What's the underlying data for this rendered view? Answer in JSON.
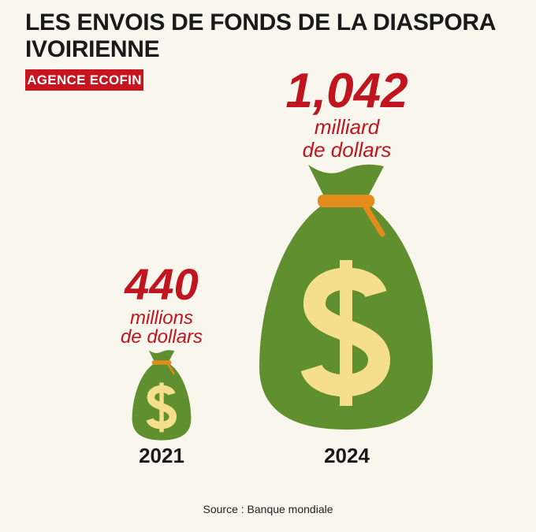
{
  "header": {
    "title": "LES ENVOIS DE FONDS DE LA DIASPORA IVOIRIENNE",
    "brand": "agence ecofin"
  },
  "items": [
    {
      "amount": "440",
      "unit_lines": [
        "millions",
        "de dollars"
      ],
      "year": "2021"
    },
    {
      "amount": "1,042",
      "unit_lines": [
        "milliard",
        "de dollars"
      ],
      "year": "2024"
    }
  ],
  "source": "Source : Banque mondiale"
}
